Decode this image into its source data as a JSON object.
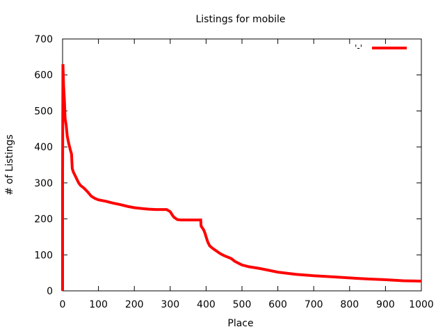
{
  "chart_data": {
    "type": "line",
    "title": "Listings for mobile",
    "xlabel": "Place",
    "ylabel": "# of Listings",
    "xlim": [
      0,
      1000
    ],
    "ylim": [
      0,
      700
    ],
    "xticks": [
      0,
      100,
      200,
      300,
      400,
      500,
      600,
      700,
      800,
      900,
      1000
    ],
    "yticks": [
      0,
      100,
      200,
      300,
      400,
      500,
      600,
      700
    ],
    "grid": false,
    "legend_position": "top-right",
    "series": [
      {
        "name": "'-'",
        "color": "#ff0000",
        "points": [
          [
            0,
            0
          ],
          [
            0,
            320
          ],
          [
            1,
            630
          ],
          [
            2,
            600
          ],
          [
            3,
            570
          ],
          [
            5,
            530
          ],
          [
            7,
            480
          ],
          [
            10,
            460
          ],
          [
            13,
            430
          ],
          [
            17,
            410
          ],
          [
            22,
            390
          ],
          [
            25,
            380
          ],
          [
            27,
            340
          ],
          [
            30,
            330
          ],
          [
            35,
            320
          ],
          [
            40,
            310
          ],
          [
            45,
            300
          ],
          [
            50,
            293
          ],
          [
            60,
            285
          ],
          [
            70,
            275
          ],
          [
            80,
            263
          ],
          [
            90,
            257
          ],
          [
            100,
            253
          ],
          [
            120,
            249
          ],
          [
            140,
            244
          ],
          [
            160,
            240
          ],
          [
            180,
            235
          ],
          [
            200,
            231
          ],
          [
            220,
            229
          ],
          [
            240,
            227
          ],
          [
            260,
            226
          ],
          [
            290,
            226
          ],
          [
            300,
            220
          ],
          [
            305,
            212
          ],
          [
            310,
            205
          ],
          [
            320,
            198
          ],
          [
            330,
            197
          ],
          [
            385,
            197
          ],
          [
            386,
            180
          ],
          [
            393,
            170
          ],
          [
            397,
            160
          ],
          [
            400,
            150
          ],
          [
            405,
            135
          ],
          [
            410,
            125
          ],
          [
            420,
            117
          ],
          [
            430,
            110
          ],
          [
            440,
            103
          ],
          [
            450,
            98
          ],
          [
            470,
            90
          ],
          [
            480,
            82
          ],
          [
            490,
            77
          ],
          [
            500,
            72
          ],
          [
            520,
            67
          ],
          [
            550,
            62
          ],
          [
            580,
            56
          ],
          [
            600,
            52
          ],
          [
            650,
            46
          ],
          [
            700,
            42
          ],
          [
            750,
            39
          ],
          [
            800,
            36
          ],
          [
            850,
            33
          ],
          [
            900,
            31
          ],
          [
            950,
            28
          ],
          [
            1000,
            27
          ]
        ]
      }
    ]
  }
}
